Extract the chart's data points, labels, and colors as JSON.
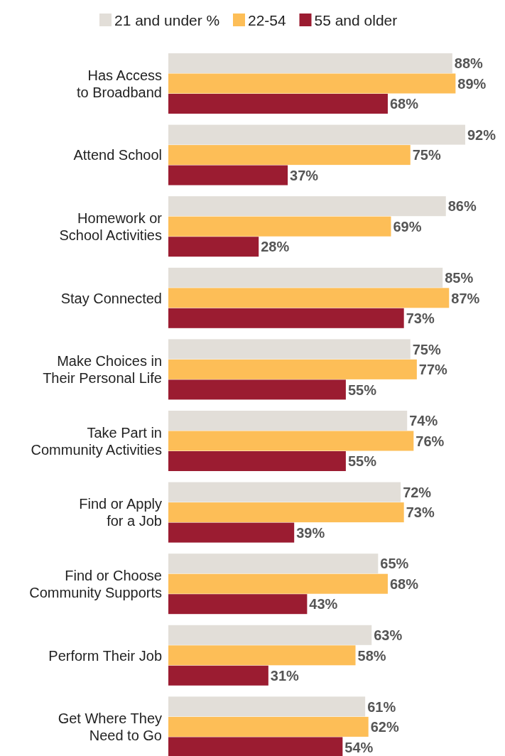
{
  "chart_data": {
    "type": "bar",
    "orientation": "horizontal",
    "categories": [
      "Has Access to Broadband",
      "Attend School",
      "Homework or School Activities",
      "Stay Connected",
      "Make Choices in Their Personal Life",
      "Take Part in Community Activities",
      "Find or Apply for a Job",
      "Find or Choose Community Supports",
      "Perform Their Job",
      "Get Where They Need to Go"
    ],
    "series": [
      {
        "name": "21 and under %",
        "color": "#e2ded8",
        "values": [
          88,
          92,
          86,
          85,
          75,
          74,
          72,
          65,
          63,
          61
        ],
        "value_labels": [
          "88%",
          "92%",
          "86%",
          "85%",
          "75%",
          "74%",
          "72%",
          "65%",
          "63%",
          "61%"
        ]
      },
      {
        "name": "22-54",
        "color": "#fdbe57",
        "values": [
          89,
          75,
          69,
          87,
          77,
          76,
          73,
          68,
          58,
          62
        ],
        "value_labels": [
          "89%",
          "75%",
          "69%",
          "87%",
          "77%",
          "76%",
          "73%",
          "68%",
          "58%",
          "62%"
        ]
      },
      {
        "name": "55 and older",
        "color": "#9b1c31",
        "values": [
          68,
          37,
          28,
          73,
          55,
          55,
          39,
          43,
          31,
          54
        ],
        "value_labels": [
          "68%",
          "37%",
          "28%",
          "73%",
          "55%",
          "55%",
          "39%",
          "43%",
          "31%",
          "54%"
        ]
      }
    ],
    "tick_labels": "y",
    "legend": "top"
  }
}
